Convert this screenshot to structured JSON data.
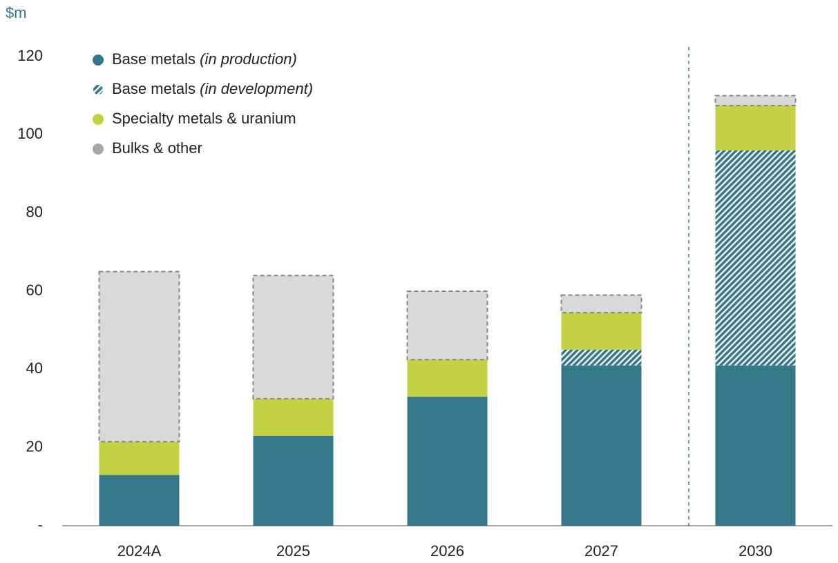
{
  "chart_data": {
    "type": "stacked_bar",
    "y_label": "$m",
    "categories": [
      "2024A",
      "2025",
      "2026",
      "2027",
      "2030"
    ],
    "series": [
      {
        "name": "Base metals (in production)",
        "color": "#35788a",
        "values": [
          13,
          23,
          33,
          41,
          41
        ]
      },
      {
        "name": "Base metals (in development)",
        "color": "#35788a",
        "pattern": "hatch",
        "values": [
          null,
          null,
          null,
          4,
          55
        ]
      },
      {
        "name": "Specialty metals & uranium",
        "color": "#c5d044",
        "values": [
          8.5,
          9.5,
          9.5,
          9.5,
          11.5
        ]
      },
      {
        "name": "Bulks & other",
        "color": "#d9d9d9",
        "border": "dashed",
        "values": [
          43.5,
          31.5,
          17.5,
          4.5,
          2.5
        ]
      }
    ],
    "ylim": [
      0,
      120
    ],
    "yticks": [
      {
        "value": 0,
        "label": "-"
      },
      20,
      40,
      60,
      80,
      100,
      120
    ],
    "grid": false,
    "legend": "top-left"
  }
}
